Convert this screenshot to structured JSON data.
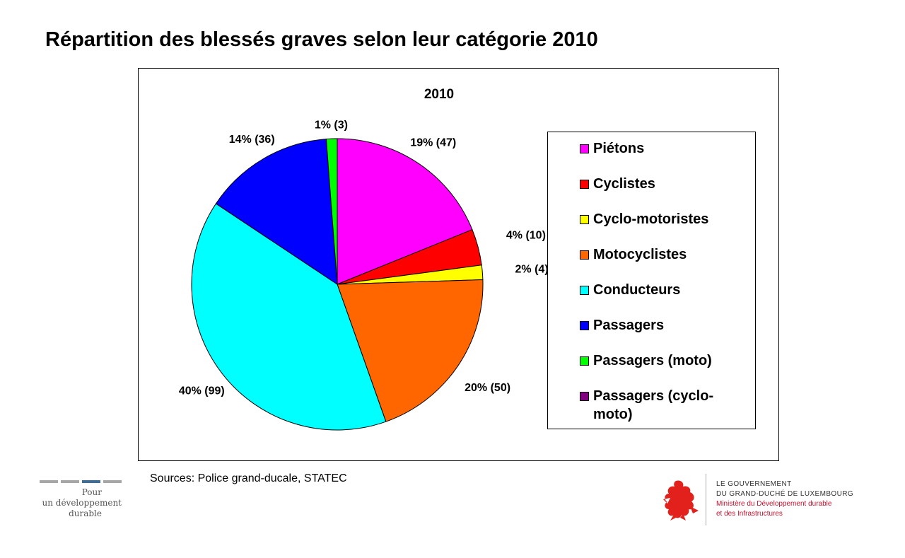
{
  "page_title": "Répartition des blessés graves selon leur catégorie 2010",
  "chart_data": {
    "type": "pie",
    "title": "2010",
    "slices": [
      {
        "label": "Piétons",
        "value": 47,
        "percent_label": "19% (47)",
        "color": "#ff00ff"
      },
      {
        "label": "Cyclistes",
        "value": 10,
        "percent_label": "4% (10)",
        "color": "#ff0000"
      },
      {
        "label": "Cyclo-motoristes",
        "value": 4,
        "percent_label": "2% (4)",
        "color": "#ffff00"
      },
      {
        "label": "Motocyclistes",
        "value": 50,
        "percent_label": "20% (50)",
        "color": "#ff6600"
      },
      {
        "label": "Conducteurs",
        "value": 99,
        "percent_label": "40% (99)",
        "color": "#00ffff"
      },
      {
        "label": "Passagers",
        "value": 36,
        "percent_label": "14% (36)",
        "color": "#0000ff"
      },
      {
        "label": "Passagers (moto)",
        "value": 3,
        "percent_label": "1% (3)",
        "color": "#00ff00"
      },
      {
        "label": "Passagers (cyclo-moto)",
        "value": 0,
        "percent_label": "",
        "color": "#800080"
      }
    ],
    "legend_position": "right"
  },
  "source": "Sources: Police grand-ducale, STATEC",
  "footer_left": {
    "line1": "Pour",
    "line2": "un développement",
    "line3": "durable"
  },
  "gov_logo": {
    "line1": "LE GOUVERNEMENT",
    "line2": "DU GRAND-DUCHÉ DE LUXEMBOURG",
    "line3": "Ministère du Développement durable",
    "line4": "et des Infrastructures",
    "accent_color": "#c8102e"
  }
}
